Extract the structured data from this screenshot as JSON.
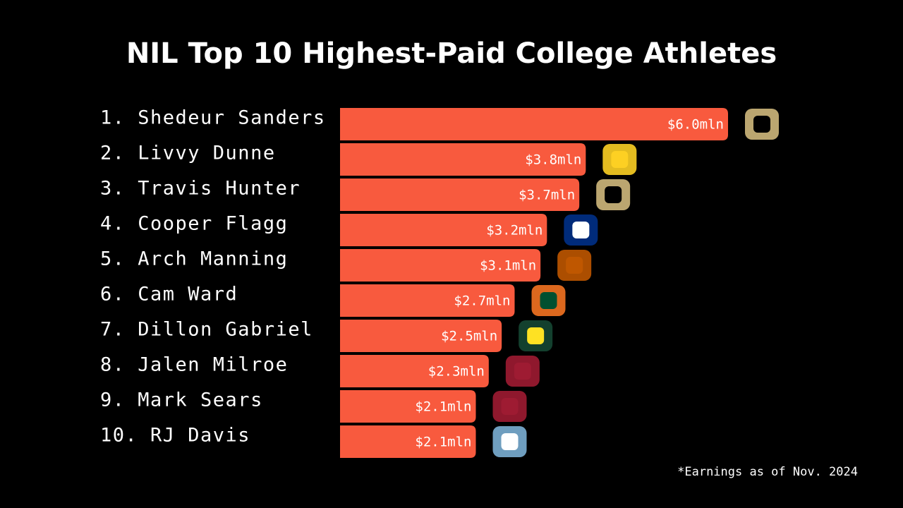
{
  "chart_data": {
    "type": "bar",
    "orientation": "horizontal",
    "title": "NIL Top 10 Highest-Paid College Athletes",
    "categories": [
      "1. Shedeur Sanders",
      "2. Livvy Dunne",
      "3. Travis Hunter",
      "4. Cooper Flagg",
      "5. Arch Manning",
      "6. Cam Ward",
      "7. Dillon Gabriel",
      "8. Jalen Milroe",
      "9. Mark Sears",
      "10. RJ Davis"
    ],
    "values": [
      6.0,
      3.8,
      3.7,
      3.2,
      3.1,
      2.7,
      2.5,
      2.3,
      2.1,
      2.1
    ],
    "value_labels": [
      "$6.0mln",
      "$3.8mln",
      "$3.7mln",
      "$3.2mln",
      "$3.1mln",
      "$2.7mln",
      "$2.5mln",
      "$2.3mln",
      "$2.1mln",
      "$2.1mln"
    ],
    "color": "#f85a3e",
    "footnote": "*Earnings as of Nov. 2024"
  }
}
